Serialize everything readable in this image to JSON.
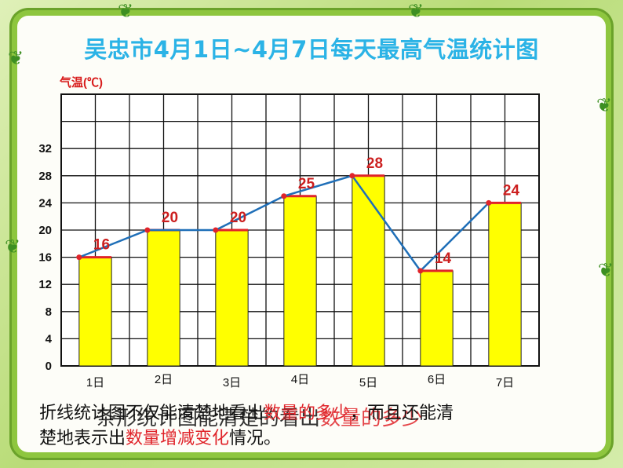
{
  "title": "吴忠市4月1日~4月7日每天最高气温统计图",
  "captions": {
    "line1_a": "折线统计图不仅能清楚地看出",
    "line1_red": "数量的多少",
    "line1_b": "，而且还能清",
    "line2_a": "楚地表示出",
    "line2_red": "数量增减变化",
    "line2_b": "情况。",
    "overlay_a": "条形统计图能清楚的看出",
    "overlay_red": "数量的多少"
  },
  "colors": {
    "title": "#2bb3e6",
    "bar": "#ffff00",
    "bar_top": "#e0242a",
    "line": "#1f6fb8",
    "marker": "#e0242a",
    "label": "#cc1f1f",
    "frame": "#8ec63f"
  },
  "icons": [
    "leaf-icon"
  ],
  "chart_data": {
    "type": "bar",
    "title": "吴忠市4月1日~4月7日每天最高气温统计图",
    "ylabel": "气温(℃)",
    "xlabel": "",
    "categories": [
      "1日",
      "2日",
      "3日",
      "4日",
      "5日",
      "6日",
      "7日"
    ],
    "values": [
      16,
      20,
      20,
      25,
      28,
      14,
      24
    ],
    "data_labels": [
      "16",
      "20",
      "20",
      "25",
      "28",
      "14",
      "24"
    ],
    "overlay_line": [
      16,
      20,
      20,
      25,
      28,
      14,
      24
    ],
    "yticks": [
      "0",
      "4",
      "8",
      "12",
      "16",
      "20",
      "24",
      "28",
      "32"
    ],
    "ylim": [
      0,
      40
    ],
    "grid": true,
    "legend": "none"
  }
}
